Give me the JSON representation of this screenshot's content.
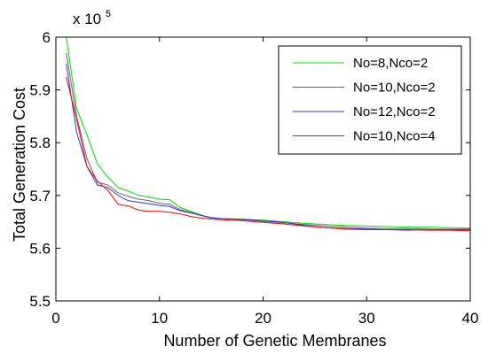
{
  "chart_data": {
    "type": "line",
    "xlabel": "Number of Genetic Membranes",
    "ylabel": "Total Generation Cost",
    "multiplier_base": "x 10",
    "multiplier_exp": "5",
    "xlim": [
      0,
      40
    ],
    "ylim": [
      5.5,
      6.0
    ],
    "xticks": [
      "0",
      "10",
      "20",
      "30",
      "40"
    ],
    "yticks": [
      "5.5",
      "5.6",
      "5.7",
      "5.8",
      "5.9",
      "6"
    ],
    "legend_position": "top-right",
    "grid": false,
    "series": [
      {
        "name": "No=8,Nco=2",
        "color": "#00dd00",
        "x": [
          1,
          2,
          3,
          4,
          5,
          6,
          7,
          8,
          9,
          10,
          11,
          12,
          13,
          14,
          15,
          16,
          18,
          20,
          22,
          24,
          26,
          28,
          30,
          32,
          34,
          36,
          38,
          40
        ],
        "y": [
          6.0,
          5.865,
          5.815,
          5.76,
          5.735,
          5.715,
          5.708,
          5.7,
          5.697,
          5.693,
          5.692,
          5.677,
          5.67,
          5.663,
          5.657,
          5.656,
          5.655,
          5.653,
          5.65,
          5.647,
          5.645,
          5.643,
          5.642,
          5.641,
          5.64,
          5.64,
          5.639,
          5.638
        ]
      },
      {
        "name": "No=10,Nco=2",
        "color": "#666666",
        "x": [
          1,
          2,
          3,
          4,
          5,
          6,
          7,
          8,
          9,
          10,
          11,
          12,
          13,
          14,
          15,
          16,
          18,
          20,
          22,
          24,
          26,
          28,
          30,
          32,
          34,
          36,
          38,
          40
        ],
        "y": [
          5.97,
          5.85,
          5.77,
          5.725,
          5.72,
          5.705,
          5.698,
          5.693,
          5.69,
          5.685,
          5.683,
          5.673,
          5.668,
          5.662,
          5.657,
          5.656,
          5.654,
          5.651,
          5.648,
          5.645,
          5.642,
          5.64,
          5.638,
          5.637,
          5.637,
          5.636,
          5.636,
          5.636
        ]
      },
      {
        "name": "No=12,Nco=2",
        "color": "#3333dd",
        "x": [
          1,
          2,
          3,
          4,
          5,
          6,
          7,
          8,
          9,
          10,
          11,
          12,
          13,
          14,
          15,
          16,
          18,
          20,
          22,
          24,
          26,
          28,
          30,
          32,
          34,
          36,
          38,
          40
        ],
        "y": [
          5.95,
          5.82,
          5.755,
          5.72,
          5.715,
          5.7,
          5.69,
          5.687,
          5.684,
          5.681,
          5.679,
          5.671,
          5.667,
          5.662,
          5.658,
          5.656,
          5.655,
          5.652,
          5.649,
          5.643,
          5.639,
          5.637,
          5.636,
          5.635,
          5.634,
          5.635,
          5.635,
          5.635
        ]
      },
      {
        "name": "No=10,Nco=4",
        "color": "#ff0000",
        "x": [
          1,
          2,
          3,
          4,
          5,
          6,
          7,
          8,
          9,
          10,
          11,
          12,
          13,
          14,
          15,
          16,
          18,
          20,
          22,
          24,
          26,
          28,
          30,
          32,
          34,
          36,
          38,
          40
        ],
        "y": [
          5.925,
          5.845,
          5.755,
          5.727,
          5.71,
          5.683,
          5.68,
          5.672,
          5.67,
          5.67,
          5.668,
          5.665,
          5.66,
          5.657,
          5.655,
          5.654,
          5.652,
          5.649,
          5.646,
          5.642,
          5.639,
          5.636,
          5.635,
          5.635,
          5.635,
          5.634,
          5.634,
          5.633
        ]
      }
    ]
  }
}
